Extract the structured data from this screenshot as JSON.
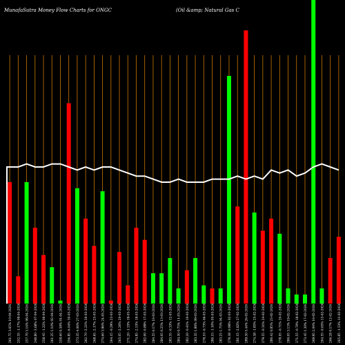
{
  "chart_data": {
    "type": "bar",
    "title": "MunafaSutra  Money Flow  Charts for ONGC",
    "subtitle": "(Oil &amp; Natural Gas C",
    "xlabel": "",
    "ylabel": "",
    "ylim": [
      0,
      100
    ],
    "grid": true,
    "legend": "none",
    "colors": {
      "up": "#00ff00",
      "down": "#ff0000",
      "grid": "#cc7a00",
      "line": "#ffffff",
      "text": "#ffffff",
      "background": "#000000"
    },
    "categories": [
      "261.75 3.65% 10-04-2026",
      "252.35 -1.17% 09-04-2026",
      "257.70 3.14% 08-04-2026",
      "248.80 -3.68% 07-04-2026",
      "258.45 -1.22% 06-04-2026",
      "261.25 1.10% 02-04-2026",
      "258.60 0.58% 01-04-2026",
      "256.85 -6.04% 30-03-2026",
      "273.35 4.06% 27-03-2026",
      "262.70 -2.21% 26-03-2026",
      "268.65 -2.17% 25-03-2026",
      "274.60 3.96% 24-03-2026",
      "264.15 -0.29% 23-03-2026",
      "265.05 -2.26% 20-03-2026",
      "271.20 -1.33% 19-03-2026",
      "274.85 -2.53% 18-03-2026",
      "282.00 -0.89% 17-03-2026",
      "284.55 0.17% 16-03-2026",
      "284.05 0.25% 13-03-2026",
      "283.35 -0.33% 12-03-2026",
      "284.30 0.75% 11-03-2026",
      "282.20 -0.41% 10-03-2026",
      "283.35 1.88% 09-03-2026",
      "278.10 -0.73% 06-03-2026",
      "280.15 -1.10% 05-03-2026",
      "283.25 1.75% 04-03-2026",
      "278.38 -0.99% 02-03-2026",
      "281.15 -2.82% 27-02-2026",
      "289.30 5.44% 26-02-2026",
      "274.38 -1.85% 25-02-2026",
      "279.55 -0.31% 24-02-2026",
      "280.42 0.85% 23-02-2026",
      "278.05 -0.71% 20-02-2026",
      "280.05 3.13% 19-02-2026",
      "271.55 -0.70% 18-02-2026",
      "273.45 1.30% 17-02-2026",
      "269.95 2.04% 16-02-2026",
      "264.55 -0.65% 13-02-2026",
      "266.28 0.17% 12-02-2026",
      "265.85 -1.53% 11-02-2026"
    ],
    "series": [
      {
        "values": [
          40,
          9,
          40,
          25,
          16,
          12,
          1,
          66,
          38,
          28,
          19,
          37,
          1,
          17,
          6,
          25,
          21,
          10,
          10,
          15,
          5,
          11,
          15,
          6,
          5,
          5,
          75,
          32,
          90,
          30,
          24,
          28,
          23,
          5,
          3,
          3,
          100,
          5,
          15,
          22
        ],
        "direction": [
          "down",
          "down",
          "up",
          "down",
          "down",
          "up",
          "up",
          "down",
          "up",
          "down",
          "down",
          "up",
          "down",
          "down",
          "down",
          "down",
          "down",
          "up",
          "up",
          "up",
          "up",
          "down",
          "up",
          "up",
          "down",
          "up",
          "up",
          "down",
          "down",
          "up",
          "down",
          "down",
          "up",
          "up",
          "up",
          "up",
          "up",
          "up",
          "down",
          "down"
        ]
      }
    ],
    "line": {
      "values": [
        45,
        45,
        46,
        45,
        45,
        46,
        46,
        45,
        44,
        45,
        44,
        45,
        45,
        44,
        43,
        42,
        42,
        41,
        40,
        40,
        41,
        40,
        40,
        40,
        41,
        41,
        41,
        42,
        41,
        42,
        41,
        44,
        43,
        44,
        42,
        43,
        45,
        46,
        45,
        44
      ],
      "ylim": [
        0,
        100
      ]
    }
  }
}
